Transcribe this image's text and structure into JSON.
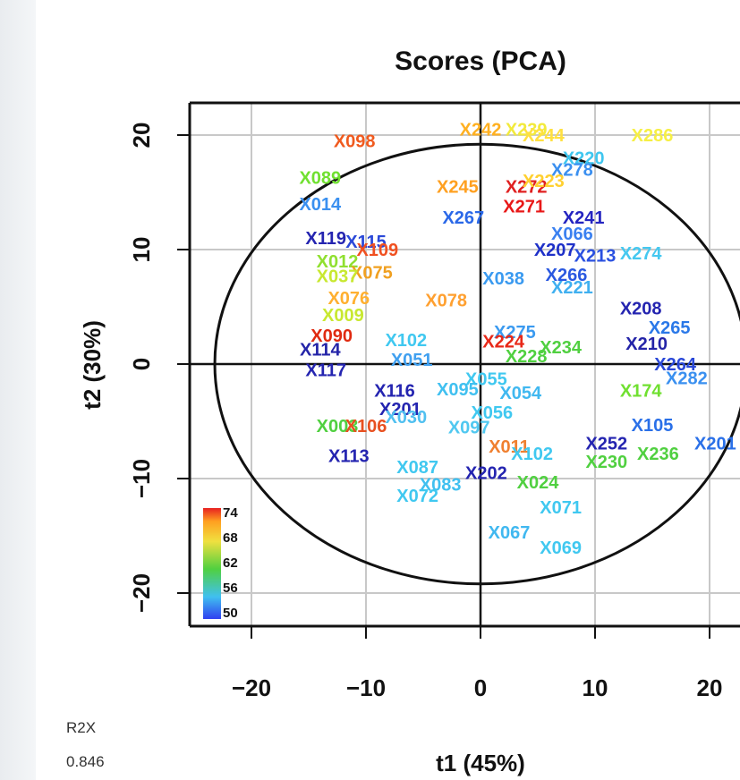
{
  "chart_data": {
    "type": "scatter",
    "title": "Scores (PCA)",
    "xlabel": "t1 (45%)",
    "ylabel": "t2 (30%)",
    "xlim": [
      -25,
      23
    ],
    "ylim": [
      -23,
      23
    ],
    "xticks": [
      "−20",
      "−10",
      "0",
      "10",
      "20"
    ],
    "xtick_values": [
      -20,
      -10,
      0,
      10,
      20
    ],
    "yticks": [
      "−20",
      "−10",
      "0",
      "10",
      "20"
    ],
    "ytick_values": [
      -20,
      -10,
      0,
      10,
      20
    ],
    "grid": true,
    "ellipse": {
      "rx": 23.2,
      "ry": 19.2
    },
    "colorbar": {
      "ticks": [
        "74",
        "68",
        "62",
        "56",
        "50"
      ],
      "placement": "bottom-left"
    },
    "points": [
      {
        "label": "X098",
        "x": -11,
        "y": 19.5,
        "c": "#f05a1e"
      },
      {
        "label": "X242",
        "x": 0,
        "y": 20.5,
        "c": "#ffb020"
      },
      {
        "label": "X239",
        "x": 4,
        "y": 20.5,
        "c": "#f2ea3c"
      },
      {
        "label": "X244",
        "x": 5.5,
        "y": 20,
        "c": "#ffe040"
      },
      {
        "label": "X286",
        "x": 15,
        "y": 20,
        "c": "#f6ef45"
      },
      {
        "label": "X220",
        "x": 9,
        "y": 18,
        "c": "#3fc6ef"
      },
      {
        "label": "X278",
        "x": 8,
        "y": 17,
        "c": "#3a8ff0"
      },
      {
        "label": "X089",
        "x": -14,
        "y": 16.3,
        "c": "#70e030"
      },
      {
        "label": "X245",
        "x": -2,
        "y": 15.5,
        "c": "#ffa020"
      },
      {
        "label": "X272",
        "x": 4,
        "y": 15.5,
        "c": "#e02020"
      },
      {
        "label": "X223",
        "x": 5.5,
        "y": 16,
        "c": "#ffd030"
      },
      {
        "label": "X271",
        "x": 3.8,
        "y": 13.8,
        "c": "#e81818"
      },
      {
        "label": "X014",
        "x": -14,
        "y": 14,
        "c": "#3a90f0"
      },
      {
        "label": "X267",
        "x": -1.5,
        "y": 12.8,
        "c": "#2a68e8"
      },
      {
        "label": "X241",
        "x": 9,
        "y": 12.8,
        "c": "#2424c0"
      },
      {
        "label": "X119",
        "x": -13.5,
        "y": 11,
        "c": "#2424b0"
      },
      {
        "label": "X115",
        "x": -10,
        "y": 10.7,
        "c": "#2a48d8"
      },
      {
        "label": "X109",
        "x": -9,
        "y": 10,
        "c": "#f05020"
      },
      {
        "label": "X066",
        "x": 8,
        "y": 11.4,
        "c": "#3a80f0"
      },
      {
        "label": "X207",
        "x": 6.5,
        "y": 10,
        "c": "#1e30c8"
      },
      {
        "label": "X213",
        "x": 10,
        "y": 9.5,
        "c": "#2a50e0"
      },
      {
        "label": "X274",
        "x": 14,
        "y": 9.7,
        "c": "#45c8f0"
      },
      {
        "label": "X012",
        "x": -12.5,
        "y": 9,
        "c": "#90e030"
      },
      {
        "label": "X075",
        "x": -9.5,
        "y": 8,
        "c": "#f0a020"
      },
      {
        "label": "X037",
        "x": -12.5,
        "y": 7.7,
        "c": "#c8e830"
      },
      {
        "label": "X038",
        "x": 2,
        "y": 7.5,
        "c": "#3a9af0"
      },
      {
        "label": "X266",
        "x": 7.5,
        "y": 7.8,
        "c": "#2a58e0"
      },
      {
        "label": "X221",
        "x": 8,
        "y": 6.7,
        "c": "#40b0f0"
      },
      {
        "label": "X076",
        "x": -11.5,
        "y": 5.8,
        "c": "#ffb030"
      },
      {
        "label": "X078",
        "x": -3,
        "y": 5.6,
        "c": "#ffa030"
      },
      {
        "label": "X208",
        "x": 14,
        "y": 4.9,
        "c": "#2424b0"
      },
      {
        "label": "X009",
        "x": -12,
        "y": 4.3,
        "c": "#c8e830"
      },
      {
        "label": "X265",
        "x": 16.5,
        "y": 3.2,
        "c": "#2a78e8"
      },
      {
        "label": "X090",
        "x": -13,
        "y": 2.5,
        "c": "#e02a10"
      },
      {
        "label": "X102",
        "x": -6.5,
        "y": 2.1,
        "c": "#40c8f0"
      },
      {
        "label": "X275",
        "x": 3,
        "y": 2.8,
        "c": "#3a9af0"
      },
      {
        "label": "X224",
        "x": 2,
        "y": 2,
        "c": "#e82818"
      },
      {
        "label": "X234",
        "x": 7,
        "y": 1.5,
        "c": "#50d040"
      },
      {
        "label": "X210",
        "x": 14.5,
        "y": 1.8,
        "c": "#2424a8"
      },
      {
        "label": "X114",
        "x": -14,
        "y": 1.3,
        "c": "#2424a8"
      },
      {
        "label": "X228",
        "x": 4,
        "y": 0.7,
        "c": "#50d040"
      },
      {
        "label": "X051",
        "x": -6,
        "y": 0.4,
        "c": "#40a0f0"
      },
      {
        "label": "X264",
        "x": 17,
        "y": 0,
        "c": "#2a48d8"
      },
      {
        "label": "X117",
        "x": -13.5,
        "y": -0.5,
        "c": "#2424b0"
      },
      {
        "label": "X282",
        "x": 18,
        "y": -1.2,
        "c": "#3a90f0"
      },
      {
        "label": "X055",
        "x": 0.5,
        "y": -1.3,
        "c": "#40c8f0"
      },
      {
        "label": "X116",
        "x": -7.5,
        "y": -2.3,
        "c": "#2424b0"
      },
      {
        "label": "X095",
        "x": -2,
        "y": -2.2,
        "c": "#40c0f0"
      },
      {
        "label": "X054",
        "x": 3.5,
        "y": -2.5,
        "c": "#40b8f0"
      },
      {
        "label": "X174",
        "x": 14,
        "y": -2.3,
        "c": "#70e030"
      },
      {
        "label": "X201",
        "x": -7,
        "y": -3.9,
        "c": "#2424b0"
      },
      {
        "label": "X056",
        "x": 1,
        "y": -4.2,
        "c": "#40c8f0"
      },
      {
        "label": "X030",
        "x": -6.5,
        "y": -4.6,
        "c": "#50c0f0"
      },
      {
        "label": "X003",
        "x": -12.5,
        "y": -5.4,
        "c": "#50d040"
      },
      {
        "label": "X106",
        "x": -10,
        "y": -5.4,
        "c": "#e85020"
      },
      {
        "label": "X097",
        "x": -1,
        "y": -5.5,
        "c": "#50c8f0"
      },
      {
        "label": "X105",
        "x": 15,
        "y": -5.3,
        "c": "#2a70e8"
      },
      {
        "label": "X252",
        "x": 11,
        "y": -6.9,
        "c": "#2424b0"
      },
      {
        "label": "X201",
        "x": 20.5,
        "y": -6.9,
        "c": "#2a70e8"
      },
      {
        "label": "X236",
        "x": 15.5,
        "y": -7.8,
        "c": "#50d040"
      },
      {
        "label": "X011",
        "x": 2.5,
        "y": -7.2,
        "c": "#f08030"
      },
      {
        "label": "X102",
        "x": 4.5,
        "y": -7.8,
        "c": "#40c8f0"
      },
      {
        "label": "X113",
        "x": -11.5,
        "y": -8,
        "c": "#2424b0"
      },
      {
        "label": "X087",
        "x": -5.5,
        "y": -9,
        "c": "#40c8f0"
      },
      {
        "label": "X202",
        "x": 0.5,
        "y": -9.5,
        "c": "#2424b0"
      },
      {
        "label": "X083",
        "x": -3.5,
        "y": -10.5,
        "c": "#40c0f0"
      },
      {
        "label": "X230",
        "x": 11,
        "y": -8.5,
        "c": "#50d040"
      },
      {
        "label": "X024",
        "x": 5,
        "y": -10.3,
        "c": "#50d040"
      },
      {
        "label": "X072",
        "x": -5.5,
        "y": -11.5,
        "c": "#40c8f0"
      },
      {
        "label": "X071",
        "x": 7,
        "y": -12.5,
        "c": "#40c8f0"
      },
      {
        "label": "X067",
        "x": 2.5,
        "y": -14.7,
        "c": "#40b8f0"
      },
      {
        "label": "X069",
        "x": 7,
        "y": -16,
        "c": "#40c8f0"
      }
    ]
  },
  "footer": {
    "r2x_label": "R2X",
    "r2x_value": "0.846"
  }
}
